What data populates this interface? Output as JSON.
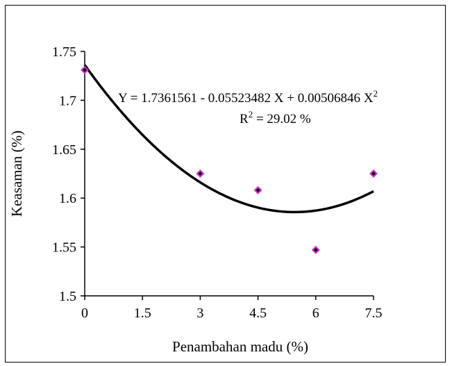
{
  "chart_data": {
    "type": "scatter",
    "xlabel": "Penambahan madu (%)",
    "ylabel": "Keasaman (%)",
    "xlim": [
      0,
      7.5
    ],
    "ylim": [
      1.5,
      1.75
    ],
    "x_ticks": [
      "0",
      "1.5",
      "3",
      "4.5",
      "6",
      "7.5"
    ],
    "y_ticks": [
      "1.5",
      "1.55",
      "1.6",
      "1.65",
      "1.7",
      "1.75"
    ],
    "grid": false,
    "points": [
      {
        "x": 0,
        "y": 1.731
      },
      {
        "x": 3,
        "y": 1.625
      },
      {
        "x": 4.5,
        "y": 1.608
      },
      {
        "x": 6,
        "y": 1.547
      },
      {
        "x": 7.5,
        "y": 1.625
      }
    ],
    "marker_color": "#cc33cc",
    "marker_center_color": "#000000",
    "trendline": {
      "type": "polynomial",
      "coefficients": [
        1.7361561,
        -0.05523482,
        0.00506846
      ],
      "equation_text": "Y  = 1.7361561 - 0.05523482 X  + 0.00506846 X",
      "equation_sup": "2",
      "r2_prefix": "R",
      "r2_sup": "2",
      "r2_suffix": " = 29.02 %",
      "color": "#000000"
    }
  }
}
